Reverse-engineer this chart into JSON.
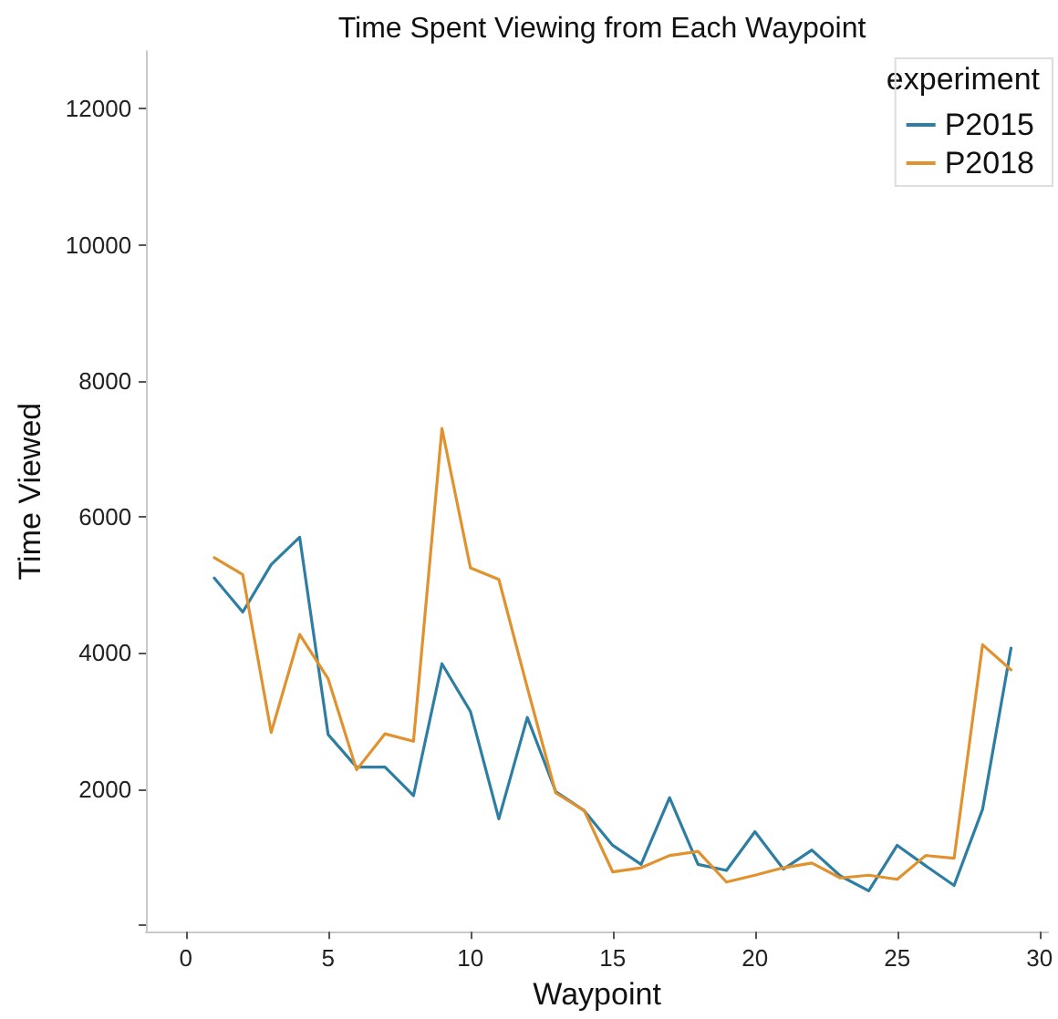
{
  "chart_data": {
    "type": "line",
    "title": "Time Spent Viewing from Each Waypoint",
    "xlabel": "Waypoint",
    "ylabel": "Time Viewed",
    "legend_title": "experiment",
    "x": [
      1,
      2,
      3,
      4,
      5,
      6,
      7,
      8,
      9,
      10,
      11,
      12,
      13,
      14,
      15,
      16,
      17,
      18,
      19,
      20,
      21,
      22,
      23,
      24,
      25,
      26,
      27,
      28,
      29
    ],
    "series": [
      {
        "name": "P2015",
        "color": "#2e7ea3",
        "values": [
          5100,
          4600,
          5300,
          5700,
          2800,
          2320,
          2320,
          1900,
          3840,
          3140,
          1560,
          3050,
          1960,
          1680,
          1170,
          890,
          1870,
          890,
          800,
          1370,
          820,
          1100,
          720,
          500,
          1170,
          870,
          580,
          1700,
          4070
        ]
      },
      {
        "name": "P2018",
        "color": "#e0922f",
        "values": [
          5400,
          5150,
          2830,
          4270,
          3620,
          2280,
          2810,
          2700,
          7300,
          5250,
          5080,
          3490,
          1940,
          1680,
          780,
          840,
          1020,
          1080,
          630,
          730,
          840,
          910,
          690,
          730,
          670,
          1020,
          980,
          4120,
          3750
        ]
      }
    ],
    "xlim": [
      -1.4,
      30.3
    ],
    "xticks": [
      0,
      5,
      10,
      15,
      20,
      25,
      30
    ],
    "ylim": [
      -100,
      12850
    ],
    "yticks": [
      {
        "value": 0,
        "label": null
      },
      2000,
      4000,
      6000,
      8000,
      10000,
      12000
    ],
    "grid": false,
    "legend": "top right",
    "marker": "none",
    "line_style": "solid"
  }
}
